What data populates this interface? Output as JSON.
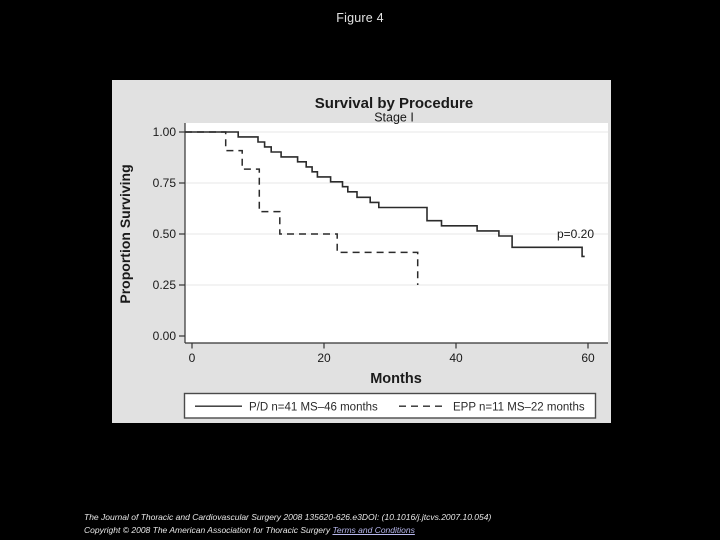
{
  "page": {
    "figure_label": "Figure 4"
  },
  "chart_data": {
    "type": "line",
    "subtype": "kaplan-meier-step",
    "title": "Survival by Procedure",
    "subtitle": "Stage I",
    "xlabel": "Months",
    "ylabel": "Proportion Surviving",
    "xlim": [
      0,
      62
    ],
    "ylim": [
      0,
      1
    ],
    "xticks": [
      {
        "label": "0",
        "value": 0
      },
      {
        "label": "20",
        "value": 20
      },
      {
        "label": "40",
        "value": 40
      },
      {
        "label": "60",
        "value": 60
      }
    ],
    "yticks": [
      {
        "label": "0.00",
        "value": 0
      },
      {
        "label": "0.25",
        "value": 0.25
      },
      {
        "label": "0.50",
        "value": 0.5
      },
      {
        "label": "0.75",
        "value": 0.75
      },
      {
        "label": "1.00",
        "value": 1
      }
    ],
    "grid": "horizontal-light",
    "legend_position": "bottom",
    "annotation": {
      "text": "p=0.20",
      "x": 55.3,
      "y": 0.5
    },
    "series": [
      {
        "name": "P/D n=41 MS–46 months",
        "line_style": "solid",
        "color": "#2b2b2b",
        "steps": [
          [
            0,
            1.0
          ],
          [
            7,
            0.976
          ],
          [
            10,
            0.951
          ],
          [
            11,
            0.927
          ],
          [
            12,
            0.902
          ],
          [
            13.5,
            0.878
          ],
          [
            16,
            0.854
          ],
          [
            17.3,
            0.829
          ],
          [
            18.2,
            0.805
          ],
          [
            19,
            0.78
          ],
          [
            21,
            0.756
          ],
          [
            22.8,
            0.732
          ],
          [
            23.6,
            0.707
          ],
          [
            25,
            0.68
          ],
          [
            27,
            0.655
          ],
          [
            28.3,
            0.63
          ],
          [
            35.6,
            0.565
          ],
          [
            37.8,
            0.54
          ],
          [
            43.2,
            0.515
          ],
          [
            46.5,
            0.49
          ],
          [
            48.5,
            0.435
          ],
          [
            59.1,
            0.39
          ]
        ],
        "end_month": 59.5
      },
      {
        "name": "EPP n=11 MS–22 months",
        "line_style": "dashed",
        "color": "#2b2b2b",
        "steps": [
          [
            0,
            1.0
          ],
          [
            5.1,
            0.909
          ],
          [
            7.6,
            0.818
          ],
          [
            10.2,
            0.61
          ],
          [
            13.3,
            0.5
          ],
          [
            22,
            0.41
          ],
          [
            34.2,
            0.25
          ]
        ],
        "end_month": 34.2
      }
    ]
  },
  "footer": {
    "citation": "The Journal of Thoracic and Cardiovascular Surgery 2008 135620-626.e3DOI: (10.1016/j.jtcvs.2007.10.054)",
    "copyright": "Copyright © 2008 The American Association for Thoracic Surgery",
    "terms_label": "Terms and Conditions"
  }
}
